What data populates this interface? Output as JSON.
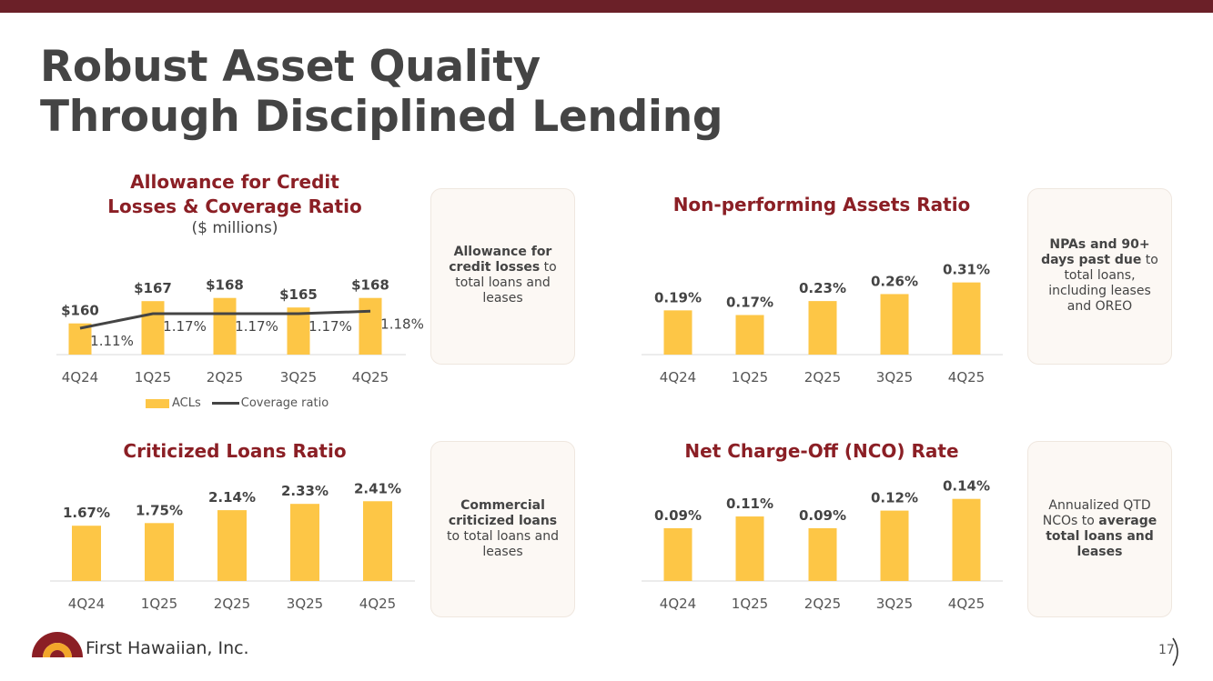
{
  "header": {
    "title_line1": "Robust Asset Quality",
    "title_line2": "Through Disciplined Lending"
  },
  "colors": {
    "bar": "#fdc646",
    "brand": "#8b1f25",
    "line": "#444444",
    "topbar": "#6b2028"
  },
  "acl": {
    "title_line1": "Allowance for Credit",
    "title_line2": "Losses & Coverage Ratio",
    "subtitle": "($ millions)",
    "legend_bar": "ACLs",
    "legend_line": "Coverage ratio",
    "card_bold": "Allowance for credit losses",
    "card_rest": " to total loans and leases"
  },
  "npa": {
    "title": "Non-performing Assets Ratio",
    "card_bold": "NPAs and 90+ days past due",
    "card_rest": " to total loans, including leases and OREO"
  },
  "criticized": {
    "title": "Criticized Loans Ratio",
    "card_bold": "Commercial criticized loans",
    "card_rest": " to total loans and leases"
  },
  "nco": {
    "title": "Net Charge-Off (NCO) Rate",
    "card_pre": "Annualized QTD NCOs to ",
    "card_bold": "average total loans and leases"
  },
  "chart_data": [
    {
      "id": "acl",
      "type": "bar",
      "categories": [
        "4Q24",
        "1Q25",
        "2Q25",
        "3Q25",
        "4Q25"
      ],
      "series": [
        {
          "name": "ACLs",
          "type": "bar",
          "values": [
            160,
            167,
            168,
            165,
            168
          ],
          "labels": [
            "$160",
            "$167",
            "$168",
            "$165",
            "$168"
          ]
        },
        {
          "name": "Coverage ratio",
          "type": "line",
          "values": [
            1.11,
            1.17,
            1.17,
            1.17,
            1.18
          ],
          "labels": [
            "1.11%",
            "1.17%",
            "1.17%",
            "1.17%",
            "1.18%"
          ]
        }
      ]
    },
    {
      "id": "npa",
      "type": "bar",
      "categories": [
        "4Q24",
        "1Q25",
        "2Q25",
        "3Q25",
        "4Q25"
      ],
      "values": [
        0.19,
        0.17,
        0.23,
        0.26,
        0.31
      ],
      "labels": [
        "0.19%",
        "0.17%",
        "0.23%",
        "0.26%",
        "0.31%"
      ]
    },
    {
      "id": "criticized",
      "type": "bar",
      "categories": [
        "4Q24",
        "1Q25",
        "2Q25",
        "3Q25",
        "4Q25"
      ],
      "values": [
        1.67,
        1.75,
        2.14,
        2.33,
        2.41
      ],
      "labels": [
        "1.67%",
        "1.75%",
        "2.14%",
        "2.33%",
        "2.41%"
      ]
    },
    {
      "id": "nco",
      "type": "bar",
      "categories": [
        "4Q24",
        "1Q25",
        "2Q25",
        "3Q25",
        "4Q25"
      ],
      "values": [
        0.09,
        0.11,
        0.09,
        0.12,
        0.14
      ],
      "labels": [
        "0.09%",
        "0.11%",
        "0.09%",
        "0.12%",
        "0.14%"
      ]
    }
  ],
  "footer": {
    "company": "First Hawaiian, Inc.",
    "page": "17"
  }
}
